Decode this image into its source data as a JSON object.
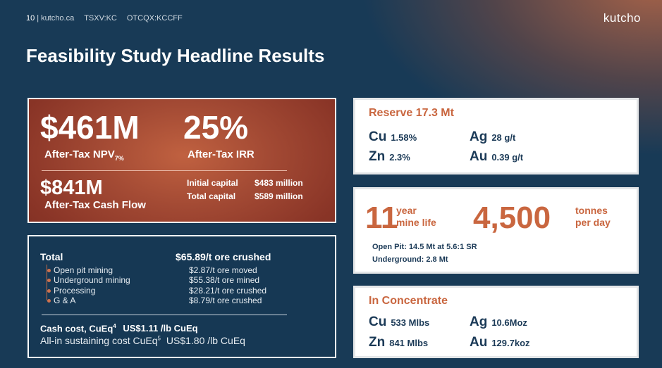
{
  "header": {
    "page_number": "10",
    "separator": "|",
    "site": "kutcho.ca",
    "tsx": "TSXV:KC",
    "otc": "OTCQX:KCCFF",
    "logo": "kutcho"
  },
  "title": "Feasibility Study Headline Results",
  "headline": {
    "npv_value": "$461M",
    "npv_label": "After-Tax NPV",
    "npv_sub": "7%",
    "irr_value": "25%",
    "irr_label": "After-Tax IRR",
    "cash_flow_value": "$841M",
    "cash_flow_label": "After-Tax Cash Flow",
    "initial_capital_label": "Initial capital",
    "initial_capital_value": "$483 million",
    "total_capital_label": "Total capital",
    "total_capital_value": "$589 million"
  },
  "costs": {
    "total_label": "Total",
    "total_value": "$65.89/t ore crushed",
    "items": [
      {
        "label": "Open pit mining",
        "value": "$2.87/t ore moved"
      },
      {
        "label": "Underground mining",
        "value": "$55.38/t ore mined"
      },
      {
        "label": "Processing",
        "value": "$28.21/t ore crushed"
      },
      {
        "label": "G & A",
        "value": "$8.79/t ore crushed"
      }
    ],
    "cash_cost_label": "Cash cost, CuEq",
    "cash_cost_sup": "4",
    "cash_cost_value": "US$1.11 /lb CuEq",
    "aisc_label": "All-in sustaining cost CuEq",
    "aisc_sup": "5",
    "aisc_value": "US$1.80 /lb CuEq"
  },
  "reserve": {
    "title": "Reserve 17.3 Mt",
    "grades": [
      {
        "symbol": "Cu",
        "value": "1.58%"
      },
      {
        "symbol": "Ag",
        "value": "28 g/t"
      },
      {
        "symbol": "Zn",
        "value": "2.3%"
      },
      {
        "symbol": "Au",
        "value": "0.39 g/t"
      }
    ]
  },
  "mine": {
    "life_value": "11",
    "life_unit_line1": "year",
    "life_unit_line2": "mine life",
    "rate_value": "4,500",
    "rate_unit_line1": "tonnes",
    "rate_unit_line2": "per day",
    "open_pit": "Open Pit: 14.5 Mt at 5.6:1 SR",
    "underground": "Underground: 2.8 Mt"
  },
  "concentrate": {
    "title": "In Concentrate",
    "metals": [
      {
        "symbol": "Cu",
        "value": "533 Mlbs"
      },
      {
        "symbol": "Ag",
        "value": "10.6Moz"
      },
      {
        "symbol": "Zn",
        "value": "841 Mlbs"
      },
      {
        "symbol": "Au",
        "value": "129.7koz"
      }
    ]
  },
  "colors": {
    "background": "#183a56",
    "accent": "#c9663f",
    "navy_text": "#1b3a57",
    "red_panel": "#a34a34"
  }
}
